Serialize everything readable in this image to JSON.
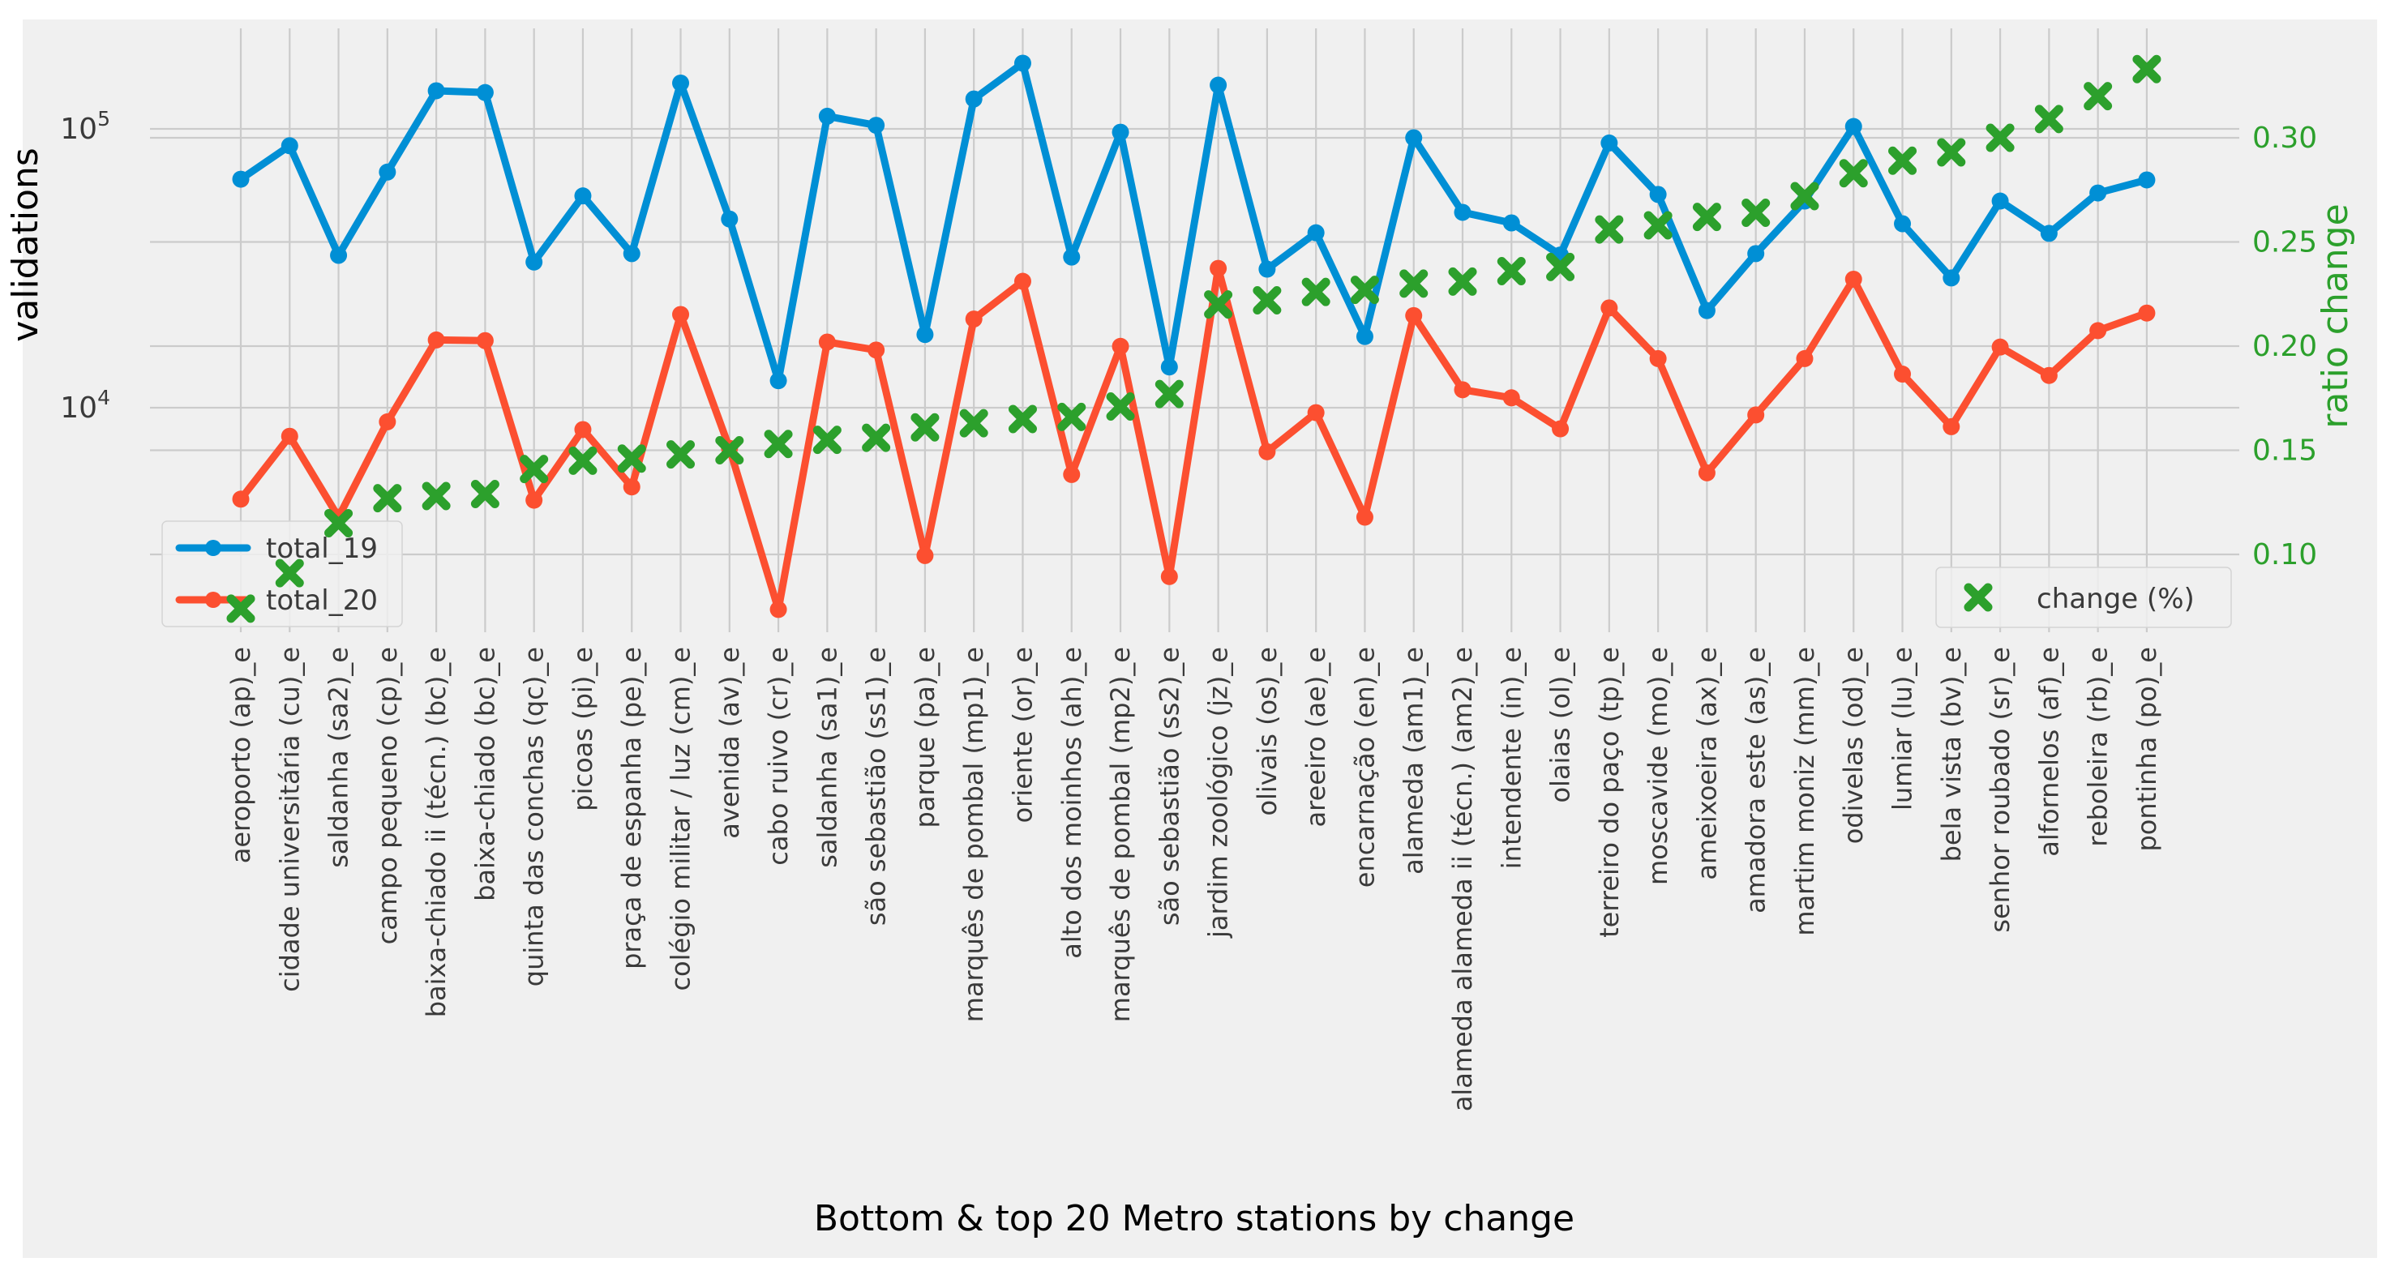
{
  "chart_data": {
    "type": "line",
    "title": "",
    "xlabel": "Bottom & top 20 Metro stations by change",
    "ylabel_left": "validations",
    "ylabel_right": "ratio change",
    "yticks_left": [
      {
        "base": "10",
        "exp": "5",
        "value": 100000
      },
      {
        "base": "10",
        "exp": "4",
        "value": 10000
      }
    ],
    "yticks_right": [
      {
        "label": "0.30",
        "value": 0.3
      },
      {
        "label": "0.25",
        "value": 0.25
      },
      {
        "label": "0.20",
        "value": 0.2
      },
      {
        "label": "0.15",
        "value": 0.15
      },
      {
        "label": "0.10",
        "value": 0.1
      }
    ],
    "left_axis_scale": "log",
    "right_axis_range": [
      0.06,
      0.35
    ],
    "grid": true,
    "categories": [
      "aeroporto (ap)_e",
      "cidade universitária (cu)_e",
      "saldanha (sa2)_e",
      "campo pequeno (cp)_e",
      "baixa-chiado ii (técn.) (bc)_e",
      "baixa-chiado (bc)_e",
      "quinta das conchas (qc)_e",
      "picoas (pi)_e",
      "praça de espanha (pe)_e",
      "colégio militar / luz (cm)_e",
      "avenida (av)_e",
      "cabo ruivo (cr)_e",
      "saldanha (sa1)_e",
      "são sebastião (ss1)_e",
      "parque (pa)_e",
      "marquês de pombal (mp1)_e",
      "oriente (or)_e",
      "alto dos moinhos (ah)_e",
      "marquês de pombal (mp2)_e",
      "são sebastião (ss2)_e",
      "jardim zoológico (jz)_e",
      "olivais (os)_e",
      "areeiro (ae)_e",
      "encarnação (en)_e",
      "alameda (am1)_e",
      "alameda alameda ii (técn.) (am2)_e",
      "intendente (in)_e",
      "olaias (ol)_e",
      "terreiro do paço (tp)_e",
      "moscavide (mo)_e",
      "ameixoeira (ax)_e",
      "amadora este (as)_e",
      "martim moniz (mm)_e",
      "odivelas (od)_e",
      "lumiar (lu)_e",
      "bela vista (bv)_e",
      "senhor roubado (sr)_e",
      "alfornelos (af)_e",
      "reboleira (rb)_e",
      "pontinha (po)_e"
    ],
    "series": [
      {
        "name": "total_19",
        "axis": "left",
        "marker": "circle",
        "color": "#008fd5",
        "values": [
          66000,
          87000,
          35200,
          70000,
          137000,
          135000,
          33300,
          57500,
          35700,
          146000,
          47500,
          12500,
          111000,
          103000,
          18300,
          128000,
          172000,
          34700,
          97300,
          14000,
          143500,
          31400,
          42400,
          18000,
          92900,
          50200,
          46000,
          35300,
          89000,
          58200,
          22300,
          35700,
          55100,
          102000,
          45700,
          29200,
          55100,
          42200,
          58900,
          65600
        ]
      },
      {
        "name": "total_20",
        "axis": "left",
        "marker": "circle",
        "color": "#fc4f30",
        "values": [
          4700,
          7900,
          4050,
          8900,
          17500,
          17400,
          4660,
          8350,
          5200,
          21600,
          7150,
          1890,
          17200,
          16100,
          2950,
          20800,
          28400,
          5760,
          16600,
          2480,
          31600,
          6950,
          9600,
          4050,
          21400,
          11600,
          10850,
          8400,
          22800,
          15000,
          5840,
          9420,
          15000,
          28900,
          13200,
          8550,
          16500,
          13050,
          18900,
          21850
        ]
      },
      {
        "name": "change (%)",
        "axis": "right",
        "marker": "X",
        "color": "#2ca02c",
        "values": [
          0.074,
          0.091,
          0.115,
          0.127,
          0.128,
          0.129,
          0.141,
          0.145,
          0.146,
          0.148,
          0.15,
          0.153,
          0.155,
          0.156,
          0.161,
          0.163,
          0.165,
          0.166,
          0.171,
          0.177,
          0.22,
          0.222,
          0.226,
          0.227,
          0.23,
          0.231,
          0.236,
          0.238,
          0.256,
          0.258,
          0.262,
          0.264,
          0.272,
          0.283,
          0.289,
          0.293,
          0.3,
          0.309,
          0.32,
          0.333
        ]
      }
    ],
    "legend_primary": {
      "entries": [
        "total_19",
        "total_20"
      ],
      "position": "lower-left"
    },
    "legend_secondary": {
      "entries": [
        "change (%)"
      ],
      "position": "lower-right"
    }
  },
  "colors": {
    "page_bg": "#ffffff",
    "figure_bg": "#f0f0f0",
    "grid": "#cbcbcb",
    "tick_text": "#3a3a3a",
    "axis_label_text": "#000000",
    "blue": "#008fd5",
    "red": "#fc4f30",
    "green": "#2ca02c",
    "legend_bg": "#f0f0f0",
    "legend_border": "#d4d4d4"
  }
}
